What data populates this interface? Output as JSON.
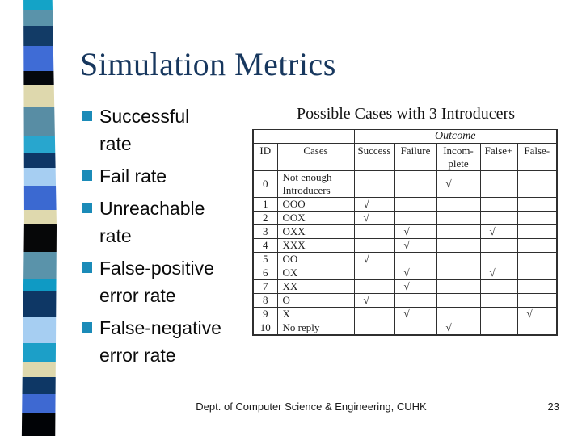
{
  "slide": {
    "title": "Simulation Metrics",
    "footer_text": "Dept. of Computer Science & Engineering, CUHK",
    "page_number": "23"
  },
  "colors": {
    "title_text": "#17375E",
    "bullet_marker": "#1B8BB8",
    "table_border": "#2F2F2F",
    "table_border_light": "#C4C4C4"
  },
  "decorative_strip": {
    "segments": [
      {
        "color": "#14A3C7",
        "height": 13
      },
      {
        "color": "#5A93AA",
        "height": 19
      },
      {
        "color": "#123B66",
        "height": 25
      },
      {
        "color": "#3F6CD6",
        "height": 31
      },
      {
        "color": "#04070C",
        "height": 17
      },
      {
        "color": "#DED8AD",
        "height": 28
      },
      {
        "color": "#588DA4",
        "height": 35
      },
      {
        "color": "#28A6CE",
        "height": 22
      },
      {
        "color": "#0E3666",
        "height": 18
      },
      {
        "color": "#A6CEF2",
        "height": 22
      },
      {
        "color": "#3B69D1",
        "height": 30
      },
      {
        "color": "#DFD9AE",
        "height": 18
      },
      {
        "color": "#060708",
        "height": 34
      },
      {
        "color": "#5A93AA",
        "height": 33
      },
      {
        "color": "#0F9AC4",
        "height": 15
      },
      {
        "color": "#0E3765",
        "height": 33
      },
      {
        "color": "#A6CEF2",
        "height": 32
      },
      {
        "color": "#1C9FC8",
        "height": 23
      },
      {
        "color": "#DED8AD",
        "height": 19
      },
      {
        "color": "#0E3765",
        "height": 21
      },
      {
        "color": "#3E69D2",
        "height": 24
      },
      {
        "color": "#010306",
        "height": 28
      }
    ]
  },
  "bullet_list": {
    "items": [
      "Successful\nrate",
      "Fail rate",
      "Unreachable\nrate",
      "False-positive\nerror rate",
      "False-negative\nerror rate"
    ]
  },
  "table_panel": {
    "heading": "Possible Cases with 3 Introducers",
    "outcome_label": "Outcome",
    "columns": [
      "ID",
      "Cases",
      "Success",
      "Failure",
      "Incom-\nplete",
      "False+",
      "False-"
    ],
    "check_glyph": "√",
    "rows": [
      {
        "id": "0",
        "cases": "Not enough\nIntroducers",
        "marks": [
          0,
          0,
          1,
          0,
          0
        ]
      },
      {
        "id": "1",
        "cases": "OOO",
        "marks": [
          1,
          0,
          0,
          0,
          0
        ]
      },
      {
        "id": "2",
        "cases": "OOX",
        "marks": [
          1,
          0,
          0,
          0,
          0
        ]
      },
      {
        "id": "3",
        "cases": "OXX",
        "marks": [
          0,
          1,
          0,
          1,
          0
        ]
      },
      {
        "id": "4",
        "cases": "XXX",
        "marks": [
          0,
          1,
          0,
          0,
          0
        ]
      },
      {
        "id": "5",
        "cases": "OO",
        "marks": [
          1,
          0,
          0,
          0,
          0
        ]
      },
      {
        "id": "6",
        "cases": "OX",
        "marks": [
          0,
          1,
          0,
          1,
          0
        ]
      },
      {
        "id": "7",
        "cases": "XX",
        "marks": [
          0,
          1,
          0,
          0,
          0
        ]
      },
      {
        "id": "8",
        "cases": "O",
        "marks": [
          1,
          0,
          0,
          0,
          0
        ]
      },
      {
        "id": "9",
        "cases": "X",
        "marks": [
          0,
          1,
          0,
          0,
          1
        ]
      },
      {
        "id": "10",
        "cases": "No reply",
        "marks": [
          0,
          0,
          1,
          0,
          0
        ]
      }
    ]
  }
}
